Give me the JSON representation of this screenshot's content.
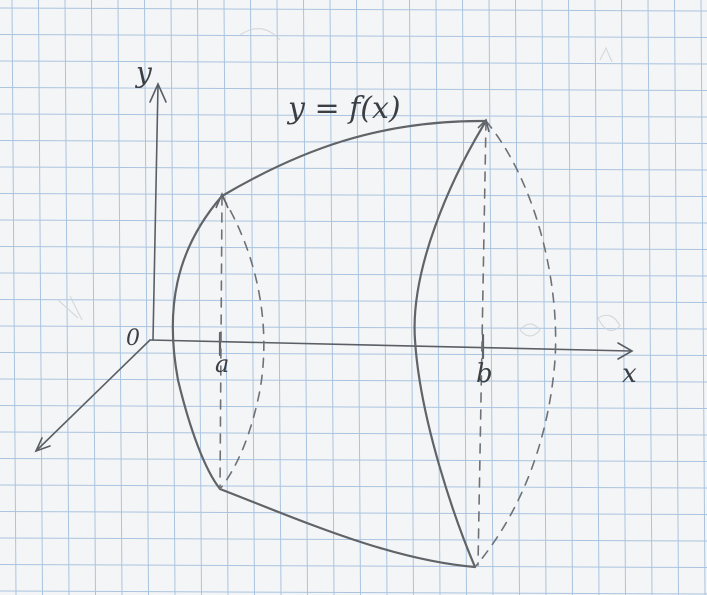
{
  "labels": {
    "y_axis": "y",
    "x_axis": "x",
    "origin": "0",
    "curve": "y = f(x)",
    "a": "a",
    "b": "b"
  },
  "colors": {
    "paper": "#f4f5f6",
    "grid": "#aac4e0",
    "ink": "#555a60",
    "faint": "#c9cdd2"
  }
}
